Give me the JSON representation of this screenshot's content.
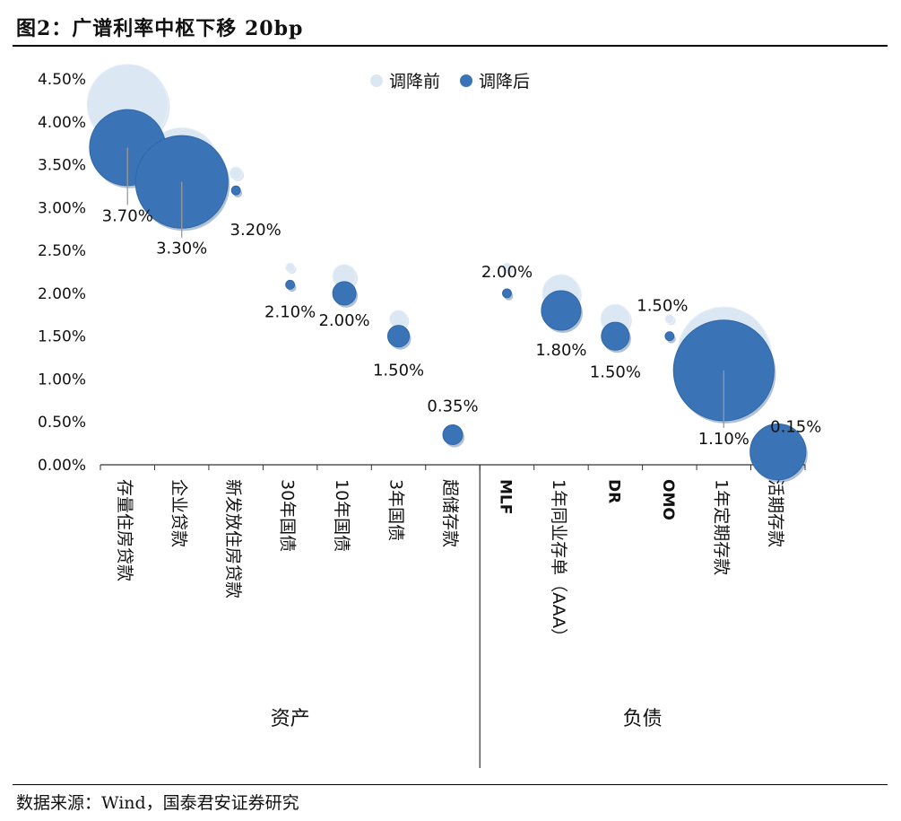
{
  "header": {
    "title": "图2：广谱利率中枢下移 20bp"
  },
  "footer": {
    "source": "数据来源：Wind，国泰君安证券研究"
  },
  "chart_data": {
    "type": "bubble",
    "title": "",
    "ylim": [
      0,
      4.5
    ],
    "ytick_step": 0.5,
    "ytick_labels": [
      "0.00%",
      "0.50%",
      "1.00%",
      "1.50%",
      "2.00%",
      "2.50%",
      "3.00%",
      "3.50%",
      "4.00%",
      "4.50%"
    ],
    "legend_position": "top",
    "categories": [
      "存量住房贷款",
      "企业贷款",
      "新发放住房贷款",
      "30年国债",
      "10年国债",
      "3年国债",
      "超储存款",
      "MLF",
      "1年同业存单（AAA）",
      "DR",
      "OMO",
      "1年定期存款",
      "活期存款"
    ],
    "groups": [
      {
        "name": "资产",
        "count": 7
      },
      {
        "name": "负债",
        "count": 6
      }
    ],
    "series": [
      {
        "name": "调降前",
        "color": "#dce7f4",
        "values": [
          4.2,
          3.5,
          3.4,
          2.3,
          2.2,
          1.7,
          0.35,
          2.3,
          2.0,
          1.7,
          1.7,
          1.3,
          0.25
        ],
        "bubble_size": [
          4.2,
          3.5,
          0.1,
          0.05,
          0.35,
          0.2,
          0.0,
          0.05,
          0.9,
          0.55,
          0.05,
          5.5,
          0.0
        ]
      },
      {
        "name": "调降后",
        "color": "#3a74b7",
        "values": [
          3.7,
          3.3,
          3.2,
          2.1,
          2.0,
          1.5,
          0.35,
          2.0,
          1.8,
          1.5,
          1.5,
          1.1,
          0.15
        ],
        "bubble_size": [
          3.7,
          5.5,
          0.05,
          0.05,
          0.35,
          0.3,
          0.25,
          0.05,
          1.0,
          0.5,
          0.05,
          6.5,
          2.0
        ]
      }
    ],
    "data_labels": [
      "3.70%",
      "3.30%",
      "3.20%",
      "2.10%",
      "2.00%",
      "1.50%",
      "0.35%",
      "2.00%",
      "1.80%",
      "1.50%",
      "1.50%",
      "1.10%",
      "0.15%"
    ]
  }
}
